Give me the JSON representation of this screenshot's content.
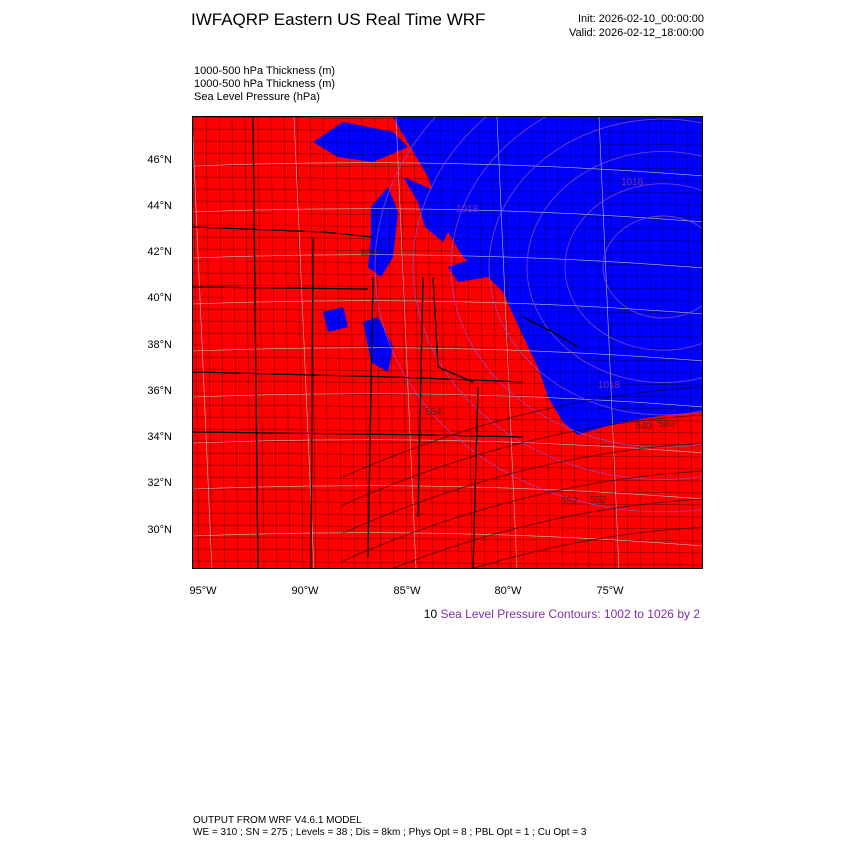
{
  "header": {
    "title": "IWFAQRP Eastern US Real Time WRF",
    "init": "Init: 2026-02-10_00:00:00",
    "valid": "Valid: 2026-02-12_18:00:00"
  },
  "fields": [
    "1000-500 hPa Thickness   (m)",
    "1000-500 hPa Thickness   (m)",
    "Sea Level Pressure   (hPa)"
  ],
  "axes": {
    "lat_labels": [
      "46°N",
      "44°N",
      "42°N",
      "40°N",
      "38°N",
      "36°N",
      "34°N",
      "32°N",
      "30°N"
    ],
    "lon_labels": [
      "95°W",
      "90°W",
      "85°W",
      "80°W",
      "75°W"
    ]
  },
  "contour_labels": {
    "thickness": [
      "552",
      "552",
      "564",
      "540",
      "540",
      "552"
    ],
    "pressure": [
      "1018",
      "1018",
      "1018"
    ]
  },
  "legend": {
    "prefix": "10",
    "text": "Sea Level Pressure Contours: 1002 to 1026 by 2"
  },
  "colors": {
    "warm_fill": "#ff0000",
    "cold_fill": "#0000ff",
    "pressure_contour": "#7b2fa0"
  },
  "footer": {
    "line1": "OUTPUT FROM WRF V4.6.1 MODEL",
    "line2": "WE = 310 ; SN = 275 ; Levels = 38 ; Dis = 8km ; Phys Opt = 8 ; PBL Opt = 1 ; Cu Opt = 3"
  }
}
